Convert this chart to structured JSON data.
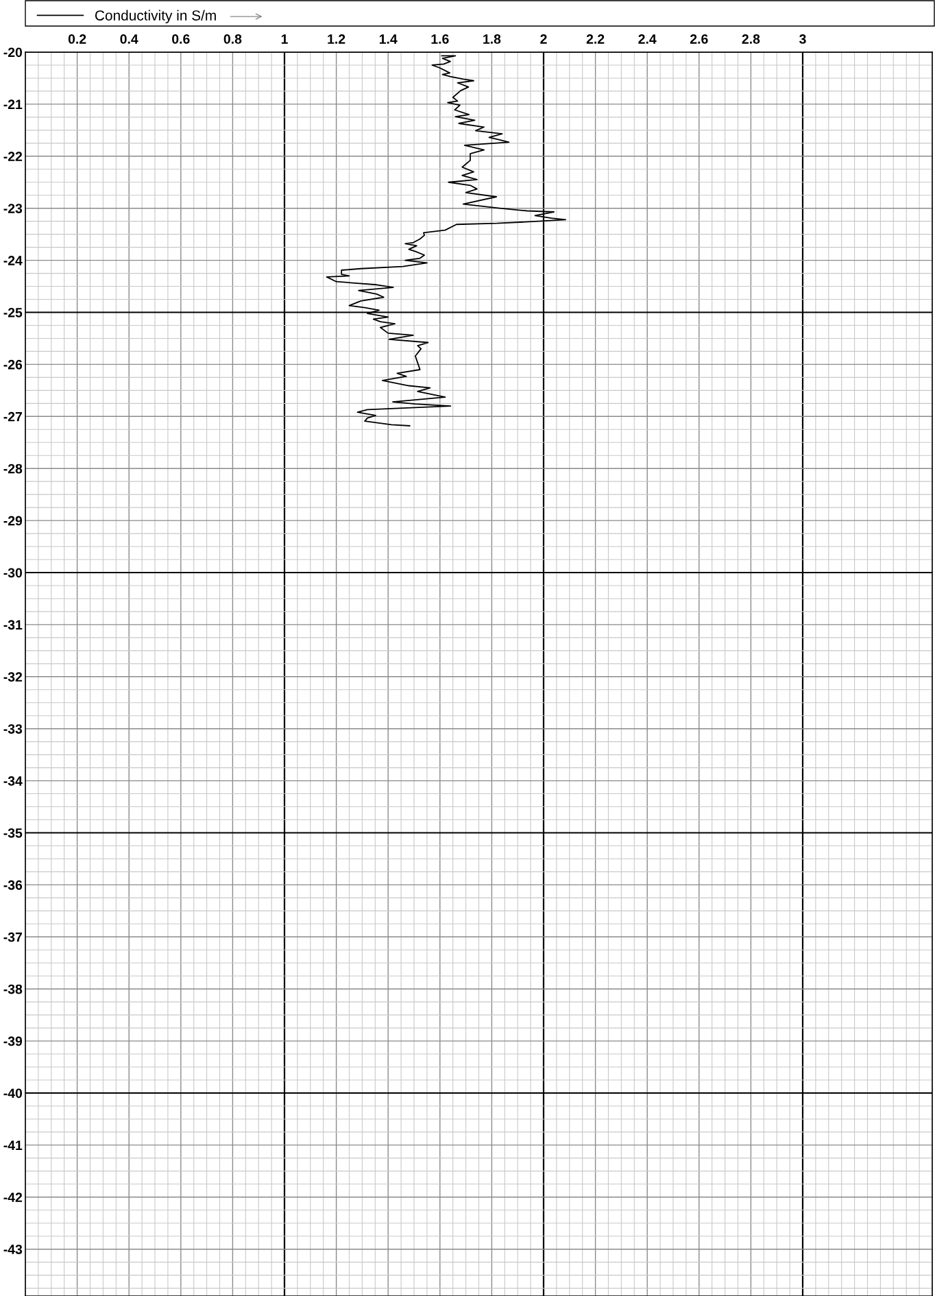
{
  "chart_data": {
    "type": "line",
    "legend": "top",
    "grid": true,
    "xlim": [
      0,
      3.5
    ],
    "ylim": [
      -43.9,
      -20
    ],
    "xticks": [
      0.2,
      0.4,
      0.6,
      0.8,
      1,
      1.2,
      1.4,
      1.6,
      1.8,
      2,
      2.2,
      2.4,
      2.6,
      2.8,
      3
    ],
    "yticks": [
      -20,
      -21,
      -22,
      -23,
      -24,
      -25,
      -26,
      -27,
      -28,
      -29,
      -30,
      -31,
      -32,
      -33,
      -34,
      -35,
      -36,
      -37,
      -38,
      -39,
      -40,
      -41,
      -42,
      -43
    ],
    "series": [
      {
        "name": "Conductivity in S/m",
        "color": "#000000",
        "x": [
          1.607,
          1.66,
          1.61,
          1.64,
          1.615,
          1.57,
          1.598,
          1.638,
          1.61,
          1.64,
          1.69,
          1.73,
          1.668,
          1.71,
          1.68,
          1.65,
          1.668,
          1.63,
          1.677,
          1.657,
          1.712,
          1.66,
          1.734,
          1.673,
          1.77,
          1.738,
          1.84,
          1.79,
          1.835,
          1.866,
          1.695,
          1.77,
          1.717,
          1.717,
          1.686,
          1.73,
          1.686,
          1.743,
          1.633,
          1.717,
          1.743,
          1.7,
          1.818,
          1.69,
          1.76,
          1.83,
          1.936,
          2.04,
          1.967,
          2.03,
          2.085,
          1.98,
          1.82,
          1.664,
          1.62,
          1.537,
          1.54,
          1.523,
          1.497,
          1.466,
          1.51,
          1.48,
          1.505,
          1.54,
          1.523,
          1.466,
          1.55,
          1.457,
          1.295,
          1.22,
          1.22,
          1.25,
          1.163,
          1.2,
          1.356,
          1.42,
          1.286,
          1.356,
          1.383,
          1.295,
          1.25,
          1.31,
          1.365,
          1.32,
          1.4,
          1.343,
          1.37,
          1.426,
          1.37,
          1.4,
          1.497,
          1.404,
          1.554,
          1.514,
          1.527,
          1.505,
          1.514,
          1.523,
          1.435,
          1.47,
          1.378,
          1.48,
          1.562,
          1.514,
          1.62,
          1.418,
          1.505,
          1.641,
          1.32,
          1.282,
          1.352,
          1.32,
          1.31,
          1.413,
          1.483
        ],
        "values": [
          -20.07,
          -20.07,
          -20.12,
          -20.18,
          -20.23,
          -20.25,
          -20.3,
          -20.4,
          -20.43,
          -20.47,
          -20.52,
          -20.55,
          -20.59,
          -20.67,
          -20.74,
          -20.87,
          -20.94,
          -20.97,
          -21.02,
          -21.11,
          -21.2,
          -21.24,
          -21.31,
          -21.37,
          -21.44,
          -21.51,
          -21.57,
          -21.64,
          -21.69,
          -21.73,
          -21.79,
          -21.88,
          -21.95,
          -22.08,
          -22.21,
          -22.3,
          -22.37,
          -22.45,
          -22.5,
          -22.56,
          -22.63,
          -22.7,
          -22.78,
          -22.92,
          -22.96,
          -23.0,
          -23.05,
          -23.07,
          -23.14,
          -23.19,
          -23.22,
          -23.25,
          -23.29,
          -23.31,
          -23.42,
          -23.47,
          -23.52,
          -23.59,
          -23.66,
          -23.68,
          -23.72,
          -23.79,
          -23.83,
          -23.9,
          -23.96,
          -24.0,
          -24.05,
          -24.12,
          -24.16,
          -24.19,
          -24.27,
          -24.3,
          -24.32,
          -24.41,
          -24.47,
          -24.52,
          -24.58,
          -24.65,
          -24.71,
          -24.78,
          -24.87,
          -24.91,
          -24.96,
          -25.02,
          -25.09,
          -25.13,
          -25.18,
          -25.22,
          -25.29,
          -25.4,
          -25.44,
          -25.52,
          -25.58,
          -25.64,
          -25.7,
          -25.84,
          -25.97,
          -26.1,
          -26.17,
          -26.23,
          -26.31,
          -26.41,
          -26.45,
          -26.52,
          -26.63,
          -26.72,
          -26.76,
          -26.8,
          -26.87,
          -26.92,
          -26.98,
          -27.03,
          -27.09,
          -27.16,
          -27.18
        ]
      }
    ]
  }
}
